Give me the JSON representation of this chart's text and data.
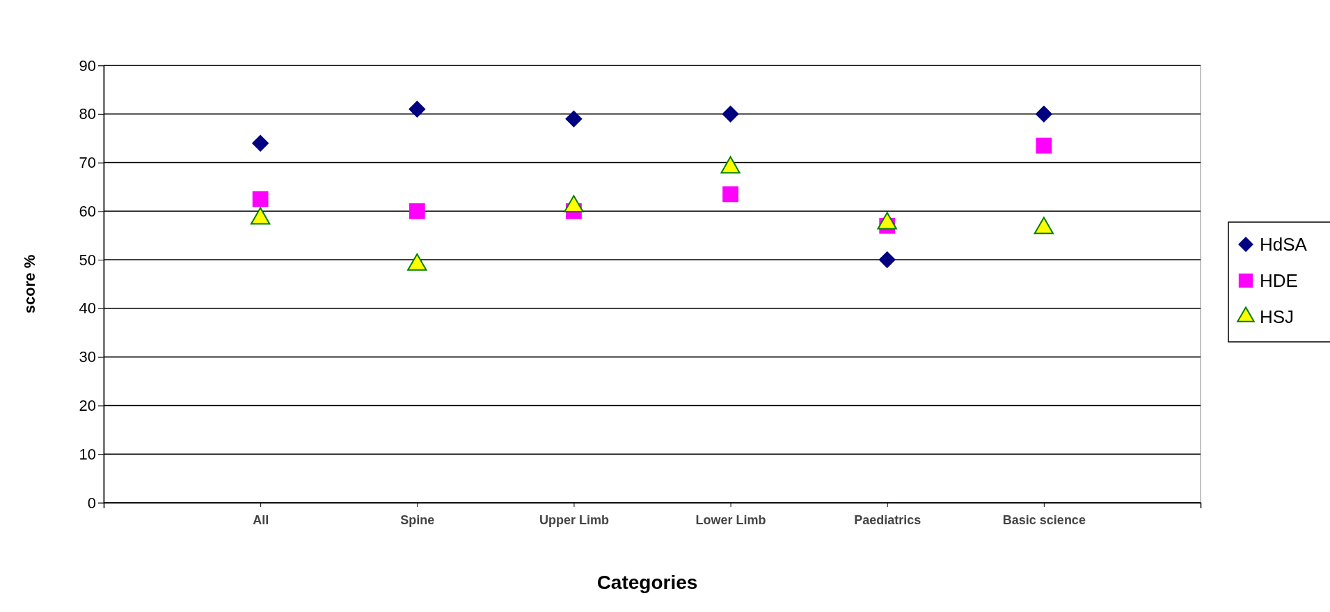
{
  "chart_data": {
    "type": "scatter",
    "xlabel": "Categories",
    "ylabel": "score %",
    "categories": [
      "All",
      "Spine",
      "Upper Limb",
      "Lower Limb",
      "Paediatrics",
      "Basic science"
    ],
    "series": [
      {
        "name": "HdSA",
        "color": "#000080",
        "marker": "diamond",
        "values": [
          74,
          81,
          79,
          80,
          50,
          80
        ]
      },
      {
        "name": "HDE",
        "color": "#ff00ff",
        "marker": "square",
        "values": [
          62.5,
          60,
          60,
          63.5,
          57,
          73.5
        ]
      },
      {
        "name": "HSJ",
        "color": "#ffff00",
        "marker": "triangle",
        "values": [
          58.5,
          49,
          61,
          69,
          57.5,
          56.5
        ]
      }
    ],
    "ylim": [
      0,
      90
    ],
    "yticks": [
      0,
      10,
      20,
      30,
      40,
      50,
      60,
      70,
      80,
      90
    ],
    "grid": "y",
    "legend": "right"
  }
}
